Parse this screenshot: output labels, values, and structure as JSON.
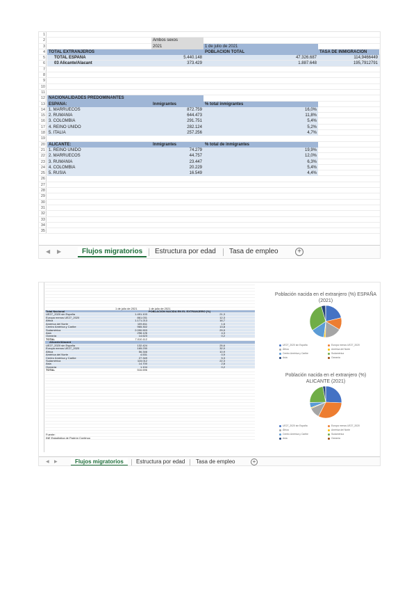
{
  "sheet1": {
    "row_numbers": [
      "1",
      "2",
      "3",
      "4",
      "5",
      "6",
      "7",
      "8",
      "9",
      "10",
      "11",
      "12",
      "13",
      "14",
      "15",
      "16",
      "17",
      "18",
      "19",
      "20",
      "21",
      "22",
      "23",
      "24",
      "25",
      "26",
      "27",
      "28",
      "29",
      "30",
      "31",
      "32",
      "33",
      "34",
      "35"
    ],
    "header_ambos": "Ambos sexos",
    "header_2021": "2021",
    "header_fecha": "1 de julio de 2021",
    "total_extranjeros": "TOTAL EXTRANJEROS",
    "poblacion_total": "POBLACIÓN TOTAL",
    "tasa_inmigracion": "TASA DE INMIGRACIÓN",
    "rows_top": [
      {
        "label": "TOTAL ESPAÑA",
        "extranjeros": "5.440.148",
        "poblacion": "47.326.687",
        "tasa": "114,9466449"
      },
      {
        "label": "03 Alicante/Alacant",
        "extranjeros": "373.429",
        "poblacion": "1.887.648",
        "tasa": "195,7912791"
      }
    ],
    "nacionalidades_title": "NACIONALIDADES PREDOMINANTES",
    "espana_label": "ESPAÑA:",
    "alicante_label": "ALICANTE:",
    "col_inmigrantes": "Inmigrantes",
    "col_pct_total": "% total inmigrantes",
    "col_pct_de": "% total de inmigrantes",
    "espana_rows": [
      {
        "name": "1. MARRUECOS",
        "value": "872.759",
        "pct": "16,0%"
      },
      {
        "name": "2. RUMANÍA",
        "value": "644.473",
        "pct": "11,8%"
      },
      {
        "name": "3. COLOMBIA",
        "value": "291.751",
        "pct": "5,4%"
      },
      {
        "name": "4. REINO UNIDO",
        "value": "282.124",
        "pct": "5,2%"
      },
      {
        "name": "5. ITALIA",
        "value": "257.256",
        "pct": "4,7%"
      }
    ],
    "alicante_rows": [
      {
        "name": "1. REINO UNIDO",
        "value": "74.279",
        "pct": "19,9%"
      },
      {
        "name": "2. MARRUECOS",
        "value": "44.757",
        "pct": "12,0%"
      },
      {
        "name": "3. RUMANÍA",
        "value": "23.447",
        "pct": "6,3%"
      },
      {
        "name": "4. COLOMBIA",
        "value": "20.229",
        "pct": "5,4%"
      },
      {
        "name": "5. RUSIA",
        "value": "16.549",
        "pct": "4,4%"
      }
    ]
  },
  "tabs": {
    "t1": "Flujos migratorios",
    "t2": "Estructura por edad",
    "t3": "Tasa de empleo",
    "add": "+",
    "prev": "◀",
    "next": "▶"
  },
  "sheet2": {
    "hdr_fecha1": "1 de julio de 2021",
    "hdr_fecha2": "1 de julio de 2021",
    "hdr_pob": "POBLACIÓN NACIDA EN EL EXTRANJERO (%)",
    "total_nacional": "Total Nacional",
    "espana_rows": [
      {
        "name": "UE27_2020 sin España",
        "v1": "1.491.103",
        "v2": "21,3"
      },
      {
        "name": "Europa menos UE27_2020",
        "v1": "861.031",
        "v2": "12,3"
      },
      {
        "name": "África",
        "v1": "1.171.213",
        "v2": "16,7"
      },
      {
        "name": "América del Norte",
        "v1": "109.811",
        "v2": "1,6"
      },
      {
        "name": "Centro América y Caribe",
        "v1": "965.302",
        "v2": "13,8"
      },
      {
        "name": "Sudamérica",
        "v1": "2.090.903",
        "v2": "29,9"
      },
      {
        "name": "Asia",
        "v1": "298.126",
        "v2": "4,3"
      },
      {
        "name": "Oceanía",
        "v1": "14.623",
        "v2": "0,2"
      }
    ],
    "total_espana": "TOTAL",
    "total_espana_val": "7.010.112",
    "alicante_label": "Alicante/Alacant",
    "alicante_rows": [
      {
        "name": "UE27_2020 sin España",
        "v1": "132.424",
        "v2": "25,6"
      },
      {
        "name": "Europa menos UE27_2020",
        "v1": "165.230",
        "v2": "32,0"
      },
      {
        "name": "África",
        "v1": "56.346",
        "v2": "10,9"
      },
      {
        "name": "América del Norte",
        "v1": "4.531",
        "v2": "0,9"
      },
      {
        "name": "Centro América y Caribe",
        "v1": "27.349",
        "v2": "5,3"
      },
      {
        "name": "Sudamérica",
        "v1": "115.012",
        "v2": "22,3"
      },
      {
        "name": "Asia",
        "v1": "14.700",
        "v2": "2,8"
      },
      {
        "name": "Oceanía",
        "v1": "1.104",
        "v2": "0,2"
      }
    ],
    "total_alicante": "TOTAL",
    "total_alicante_val": "516.696",
    "fuente": "Fuente:",
    "fuente_src": "INE Estadística de Padrón Continuo"
  },
  "chart_data": [
    {
      "type": "pie",
      "title": "Población nacida en el extranjero (%) ESPAÑA (2021)",
      "categories": [
        "UE27_2020 sin España",
        "Europa menos UE27_2020",
        "África",
        "América del Norte",
        "Centro América y Caribe",
        "Sudamérica",
        "Asia",
        "Oceanía"
      ],
      "values": [
        21.3,
        12.3,
        16.7,
        1.6,
        13.8,
        29.9,
        4.3,
        0.2
      ],
      "colors": [
        "#4472c4",
        "#ed7d31",
        "#a5a5a5",
        "#ffc000",
        "#5b9bd5",
        "#70ad47",
        "#264478",
        "#9e480e"
      ],
      "legend": "bottom"
    },
    {
      "type": "pie",
      "title": "Población nacida en el extranjero (%) ALICANTE (2021)",
      "categories": [
        "UE27_2020 sin España",
        "Europa menos UE27_2020",
        "África",
        "América del Norte",
        "Centro América y Caribe",
        "Sudamérica",
        "Asia",
        "Oceanía"
      ],
      "values": [
        25.6,
        32.0,
        10.9,
        0.9,
        5.3,
        22.3,
        2.8,
        0.2
      ],
      "colors": [
        "#4472c4",
        "#ed7d31",
        "#a5a5a5",
        "#ffc000",
        "#5b9bd5",
        "#70ad47",
        "#264478",
        "#9e480e"
      ],
      "legend": "bottom"
    }
  ]
}
